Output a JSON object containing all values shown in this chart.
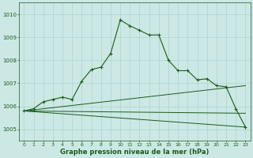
{
  "bg_color": "#cce8e4",
  "grid_color": "#aad4d0",
  "line_color": "#1a5c1a",
  "xlim": [
    -0.5,
    23.5
  ],
  "ylim": [
    1004.5,
    1010.5
  ],
  "yticks": [
    1005,
    1006,
    1007,
    1008,
    1009,
    1010
  ],
  "xticks": [
    0,
    1,
    2,
    3,
    4,
    5,
    6,
    7,
    8,
    9,
    10,
    11,
    12,
    13,
    14,
    15,
    16,
    17,
    18,
    19,
    20,
    21,
    22,
    23
  ],
  "main_line_x": [
    0,
    1,
    2,
    3,
    4,
    5,
    6,
    7,
    8,
    9,
    10,
    11,
    12,
    13,
    14,
    15,
    16,
    17,
    18,
    19,
    20,
    21,
    22,
    23
  ],
  "main_line_y": [
    1005.8,
    1005.9,
    1006.2,
    1006.3,
    1006.4,
    1006.3,
    1007.1,
    1007.6,
    1007.7,
    1008.3,
    1009.75,
    1009.5,
    1009.3,
    1009.1,
    1009.1,
    1008.0,
    1007.55,
    1007.55,
    1007.15,
    1007.2,
    1006.9,
    1006.85,
    1005.9,
    1005.1
  ],
  "diag_lines": [
    {
      "x": [
        0,
        23
      ],
      "y": [
        1005.8,
        1005.1
      ]
    },
    {
      "x": [
        0,
        23
      ],
      "y": [
        1005.8,
        1005.7
      ]
    },
    {
      "x": [
        0,
        23
      ],
      "y": [
        1005.8,
        1006.9
      ]
    }
  ],
  "xlabel": "Graphe pression niveau de la mer (hPa)"
}
